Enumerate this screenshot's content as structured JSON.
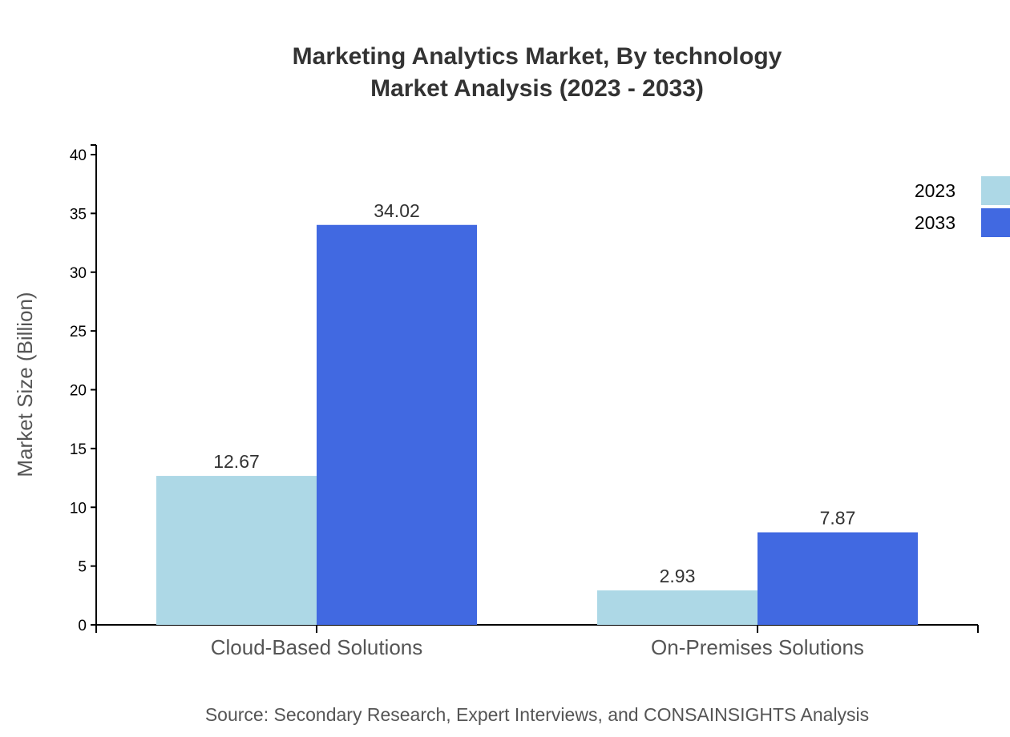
{
  "chart_data": {
    "type": "bar",
    "title": "Marketing Analytics Market, By technology",
    "subtitle": "Market Analysis (2023 - 2033)",
    "xlabel": "",
    "ylabel": "Market Size (Billion)",
    "ylim": [
      0,
      40
    ],
    "yticks": [
      0,
      5,
      10,
      15,
      20,
      25,
      30,
      35,
      40
    ],
    "categories": [
      "Cloud-Based Solutions",
      "On-Premises Solutions"
    ],
    "series": [
      {
        "name": "2023",
        "color": "#ADD8E6",
        "values": [
          12.67,
          2.93
        ]
      },
      {
        "name": "2033",
        "color": "#4169E1",
        "values": [
          34.02,
          7.87
        ]
      }
    ],
    "grid": false,
    "legend_position": "top-right",
    "source": "Source: Secondary Research, Expert Interviews, and CONSAINSIGHTS Analysis"
  }
}
